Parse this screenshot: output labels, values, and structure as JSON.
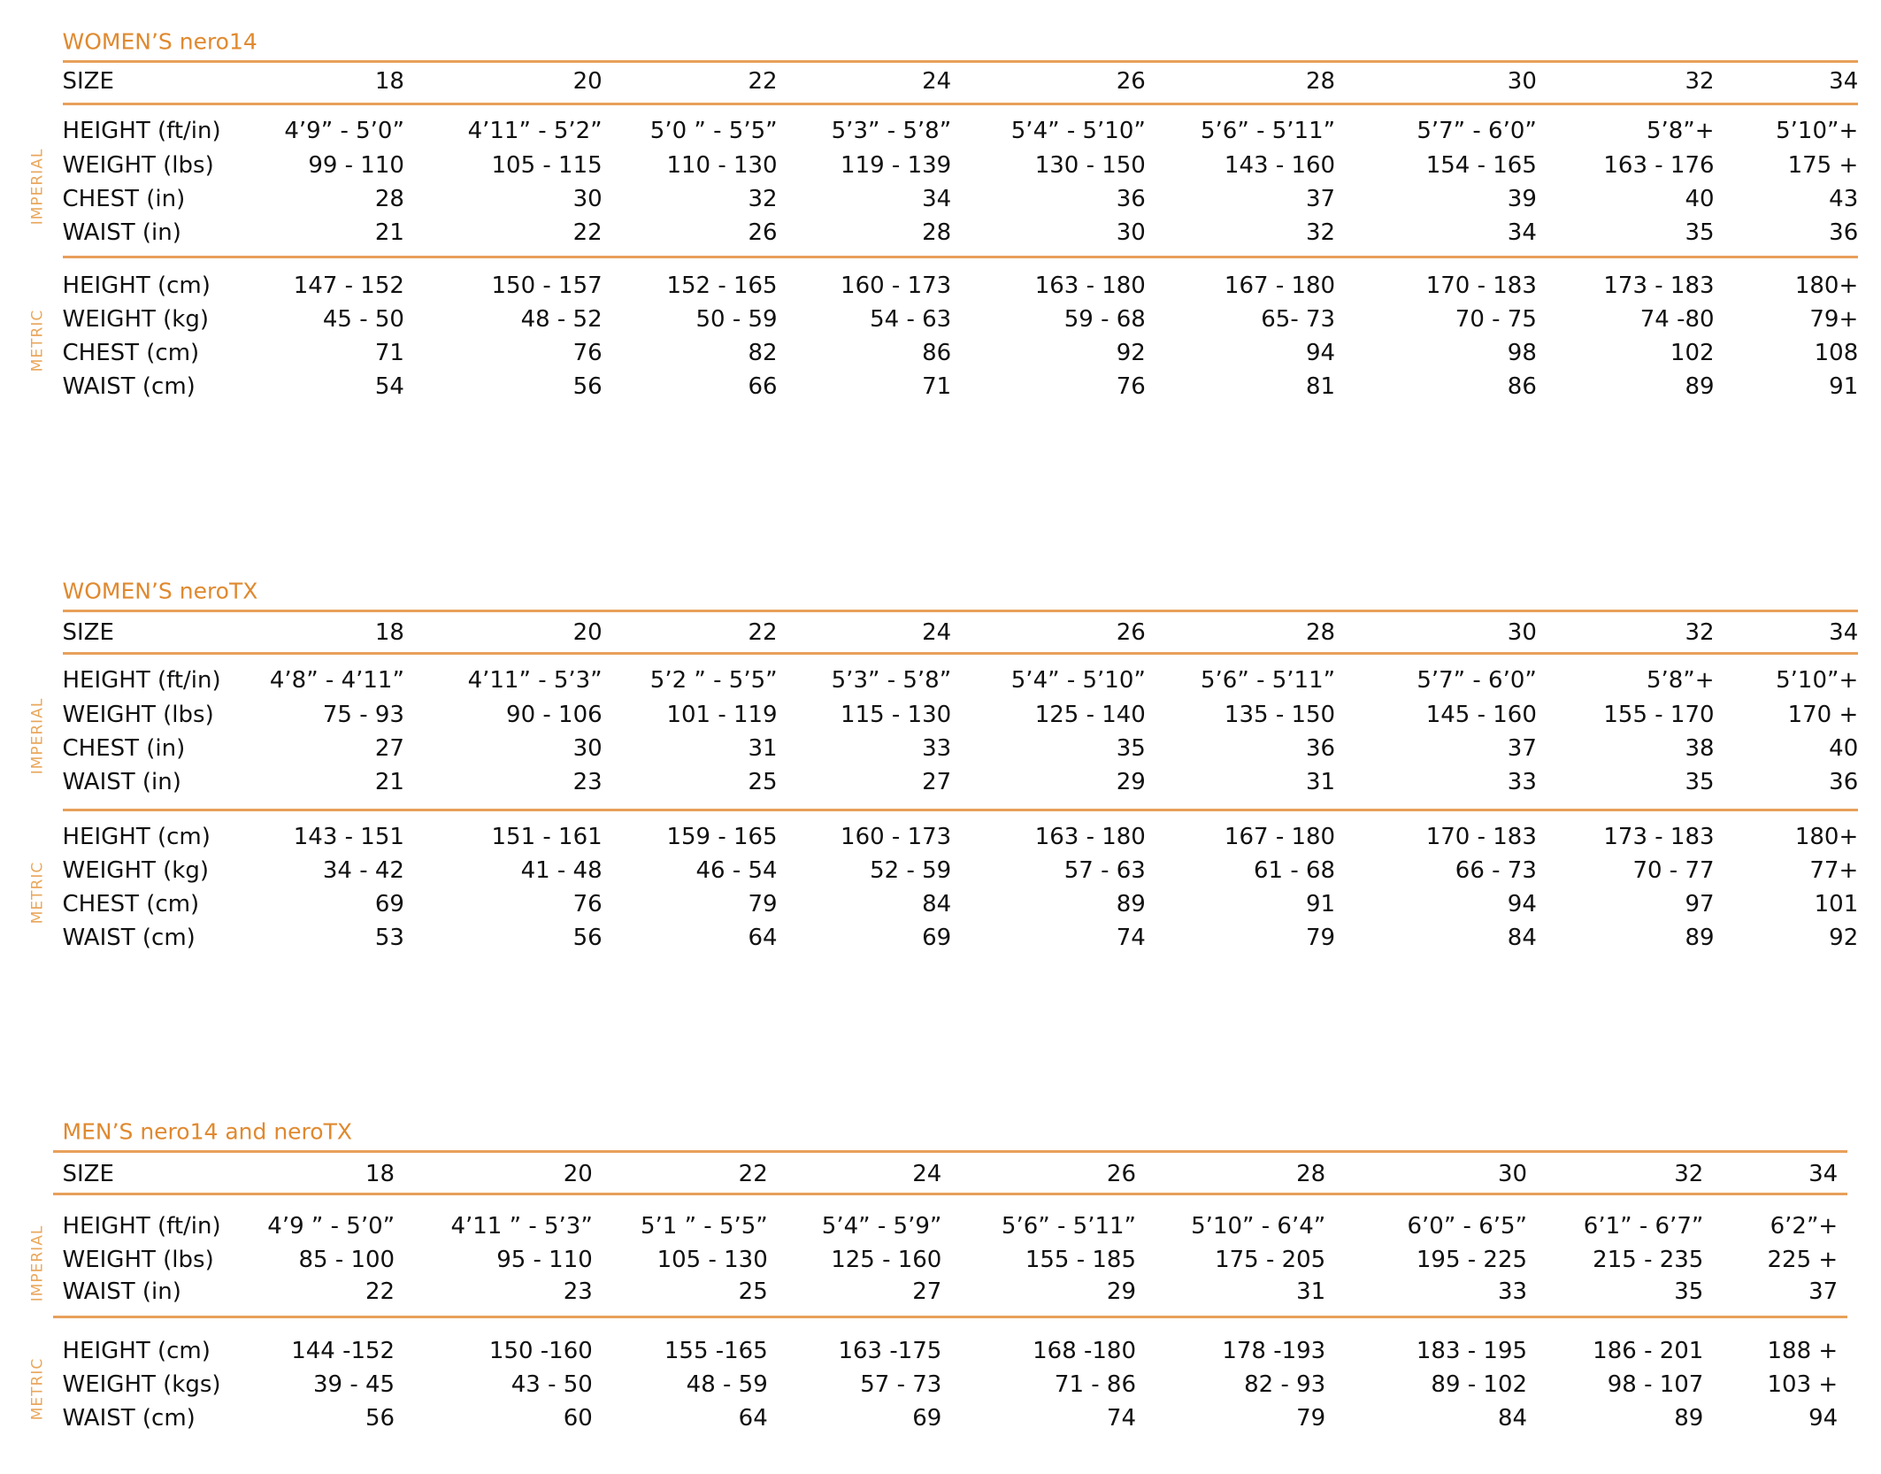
{
  "tables": [
    {
      "title": "WOMEN’S nero14",
      "header": {
        "label": "SIZE",
        "sizes": [
          18,
          20,
          22,
          24,
          26,
          28,
          30,
          32,
          34
        ]
      },
      "groups": [
        {
          "name": "IMPERIAL",
          "rows": [
            {
              "label": "HEIGHT (ft/in)",
              "values": [
                "4’9” - 5’0”",
                "4’11” - 5’2”",
                "5’0 ” - 5’5”",
                "5’3” - 5’8”",
                "5’4” - 5’10”",
                "5’6” - 5’11”",
                "5’7” - 6’0”",
                "5’8”+",
                "5’10”+"
              ]
            },
            {
              "label": "WEIGHT (lbs)",
              "values": [
                "99 - 110",
                "105 - 115",
                "110 - 130",
                "119 - 139",
                "130 - 150",
                "143 - 160",
                "154 - 165",
                "163 - 176",
                "175 +"
              ]
            },
            {
              "label": "CHEST (in)",
              "values": [
                28,
                30,
                32,
                34,
                36,
                37,
                39,
                40,
                43
              ]
            },
            {
              "label": "WAIST (in)",
              "values": [
                21,
                22,
                26,
                28,
                30,
                32,
                34,
                35,
                36
              ]
            }
          ]
        },
        {
          "name": "METRIC",
          "rows": [
            {
              "label": "HEIGHT (cm)",
              "values": [
                "147 - 152",
                "150 - 157",
                "152 - 165",
                "160 - 173",
                "163 - 180",
                "167 - 180",
                "170 - 183",
                "173 - 183",
                "180+"
              ]
            },
            {
              "label": "WEIGHT (kg)",
              "values": [
                "45 - 50",
                "48 - 52",
                "50 - 59",
                "54 - 63",
                "59 - 68",
                "65- 73",
                "70 - 75",
                "74 -80",
                "79+"
              ]
            },
            {
              "label": "CHEST (cm)",
              "values": [
                71,
                76,
                82,
                86,
                92,
                94,
                98,
                102,
                108
              ]
            },
            {
              "label": "WAIST (cm)",
              "values": [
                54,
                56,
                66,
                71,
                76,
                81,
                86,
                89,
                91
              ]
            }
          ]
        }
      ]
    },
    {
      "title": "WOMEN’S neroTX",
      "header": {
        "label": "SIZE",
        "sizes": [
          18,
          20,
          22,
          24,
          26,
          28,
          30,
          32,
          34
        ]
      },
      "groups": [
        {
          "name": "IMPERIAL",
          "rows": [
            {
              "label": "HEIGHT (ft/in)",
              "values": [
                "4’8” - 4’11”",
                "4’11” - 5’3”",
                "5’2 ” - 5’5”",
                "5’3” - 5’8”",
                "5’4” - 5’10”",
                "5’6” - 5’11”",
                "5’7” - 6’0”",
                "5’8”+",
                "5’10”+"
              ]
            },
            {
              "label": "WEIGHT (lbs)",
              "values": [
                "75 - 93",
                "90 - 106",
                "101 - 119",
                "115 - 130",
                "125 - 140",
                "135 - 150",
                "145 - 160",
                "155 - 170",
                "170 +"
              ]
            },
            {
              "label": "CHEST (in)",
              "values": [
                27,
                30,
                31,
                33,
                35,
                36,
                37,
                38,
                40
              ]
            },
            {
              "label": "WAIST (in)",
              "values": [
                21,
                23,
                25,
                27,
                29,
                31,
                33,
                35,
                36
              ]
            }
          ]
        },
        {
          "name": "METRIC",
          "rows": [
            {
              "label": "HEIGHT (cm)",
              "values": [
                "143 - 151",
                "151 - 161",
                "159 - 165",
                "160 - 173",
                "163 - 180",
                "167 - 180",
                "170 - 183",
                "173 - 183",
                "180+"
              ]
            },
            {
              "label": "WEIGHT (kg)",
              "values": [
                "34 - 42",
                "41 - 48",
                "46 - 54",
                "52 - 59",
                "57 - 63",
                "61 - 68",
                "66 - 73",
                "70 - 77",
                "77+"
              ]
            },
            {
              "label": "CHEST (cm)",
              "values": [
                69,
                76,
                79,
                84,
                89,
                91,
                94,
                97,
                101
              ]
            },
            {
              "label": "WAIST (cm)",
              "values": [
                53,
                56,
                64,
                69,
                74,
                79,
                84,
                89,
                92
              ]
            }
          ]
        }
      ]
    },
    {
      "title": "MEN’S nero14 and neroTX",
      "header": {
        "label": "SIZE",
        "sizes": [
          18,
          20,
          22,
          24,
          26,
          28,
          30,
          32,
          34
        ]
      },
      "groups": [
        {
          "name": "IMPERIAL",
          "rows": [
            {
              "label": "HEIGHT (ft/in)",
              "values": [
                "4’9 ” - 5’0”",
                "4’11 ” - 5’3”",
                "5’1 ” - 5’5”",
                "5’4” - 5’9”",
                "5’6” - 5’11”",
                "5’10” - 6’4”",
                "6’0” - 6’5”",
                "6’1” - 6’7”",
                "6’2”+"
              ]
            },
            {
              "label": "WEIGHT (lbs)",
              "values": [
                "85 - 100",
                "95 - 110",
                "105 - 130",
                "125 - 160",
                "155 - 185",
                "175 - 205",
                "195 - 225",
                "215 - 235",
                "225 +"
              ]
            },
            {
              "label": "WAIST (in)",
              "values": [
                22,
                23,
                25,
                27,
                29,
                31,
                33,
                35,
                37
              ]
            }
          ]
        },
        {
          "name": "METRIC",
          "rows": [
            {
              "label": "HEIGHT (cm)",
              "values": [
                "144 -152",
                "150 -160",
                "155 -165",
                "163 -175",
                "168 -180",
                "178 -193",
                "183 - 195",
                "186 - 201",
                "188 +"
              ]
            },
            {
              "label": "WEIGHT (kgs)",
              "values": [
                "39 - 45",
                "43 - 50",
                "48 - 59",
                "57 - 73",
                "71 - 86",
                "82 - 93",
                "89 - 102",
                "98 - 107",
                "103 +"
              ]
            },
            {
              "label": "WAIST (cm)",
              "values": [
                56,
                60,
                64,
                69,
                74,
                79,
                84,
                89,
                94
              ]
            }
          ]
        }
      ]
    }
  ]
}
